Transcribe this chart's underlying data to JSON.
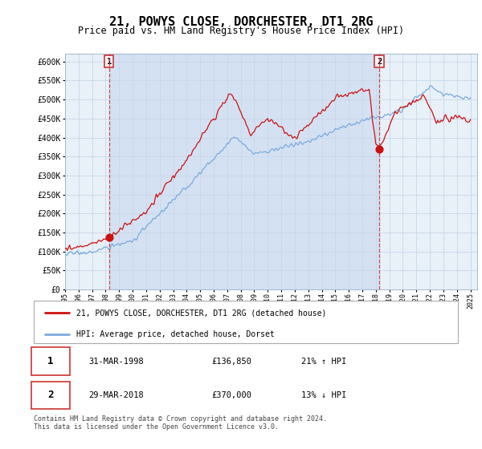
{
  "title": "21, POWYS CLOSE, DORCHESTER, DT1 2RG",
  "subtitle": "Price paid vs. HM Land Registry's House Price Index (HPI)",
  "ylim": [
    0,
    620000
  ],
  "yticks": [
    0,
    50000,
    100000,
    150000,
    200000,
    250000,
    300000,
    350000,
    400000,
    450000,
    500000,
    550000,
    600000
  ],
  "transaction1": {
    "date_decimal": 1998.25,
    "price": 136850,
    "label": "1",
    "pct": "21%",
    "dir": "↑",
    "date_str": "31-MAR-1998"
  },
  "transaction2": {
    "date_decimal": 2018.25,
    "price": 370000,
    "label": "2",
    "pct": "13%",
    "dir": "↓",
    "date_str": "29-MAR-2018"
  },
  "hpi_line_color": "#7aaadd",
  "price_line_color": "#cc1111",
  "plot_bg_color": "#e8f0f8",
  "grid_color": "#c8d8e8",
  "span_color": "#c8d8ee",
  "legend_label_red": "21, POWYS CLOSE, DORCHESTER, DT1 2RG (detached house)",
  "legend_label_blue": "HPI: Average price, detached house, Dorset",
  "footer": "Contains HM Land Registry data © Crown copyright and database right 2024.\nThis data is licensed under the Open Government Licence v3.0."
}
